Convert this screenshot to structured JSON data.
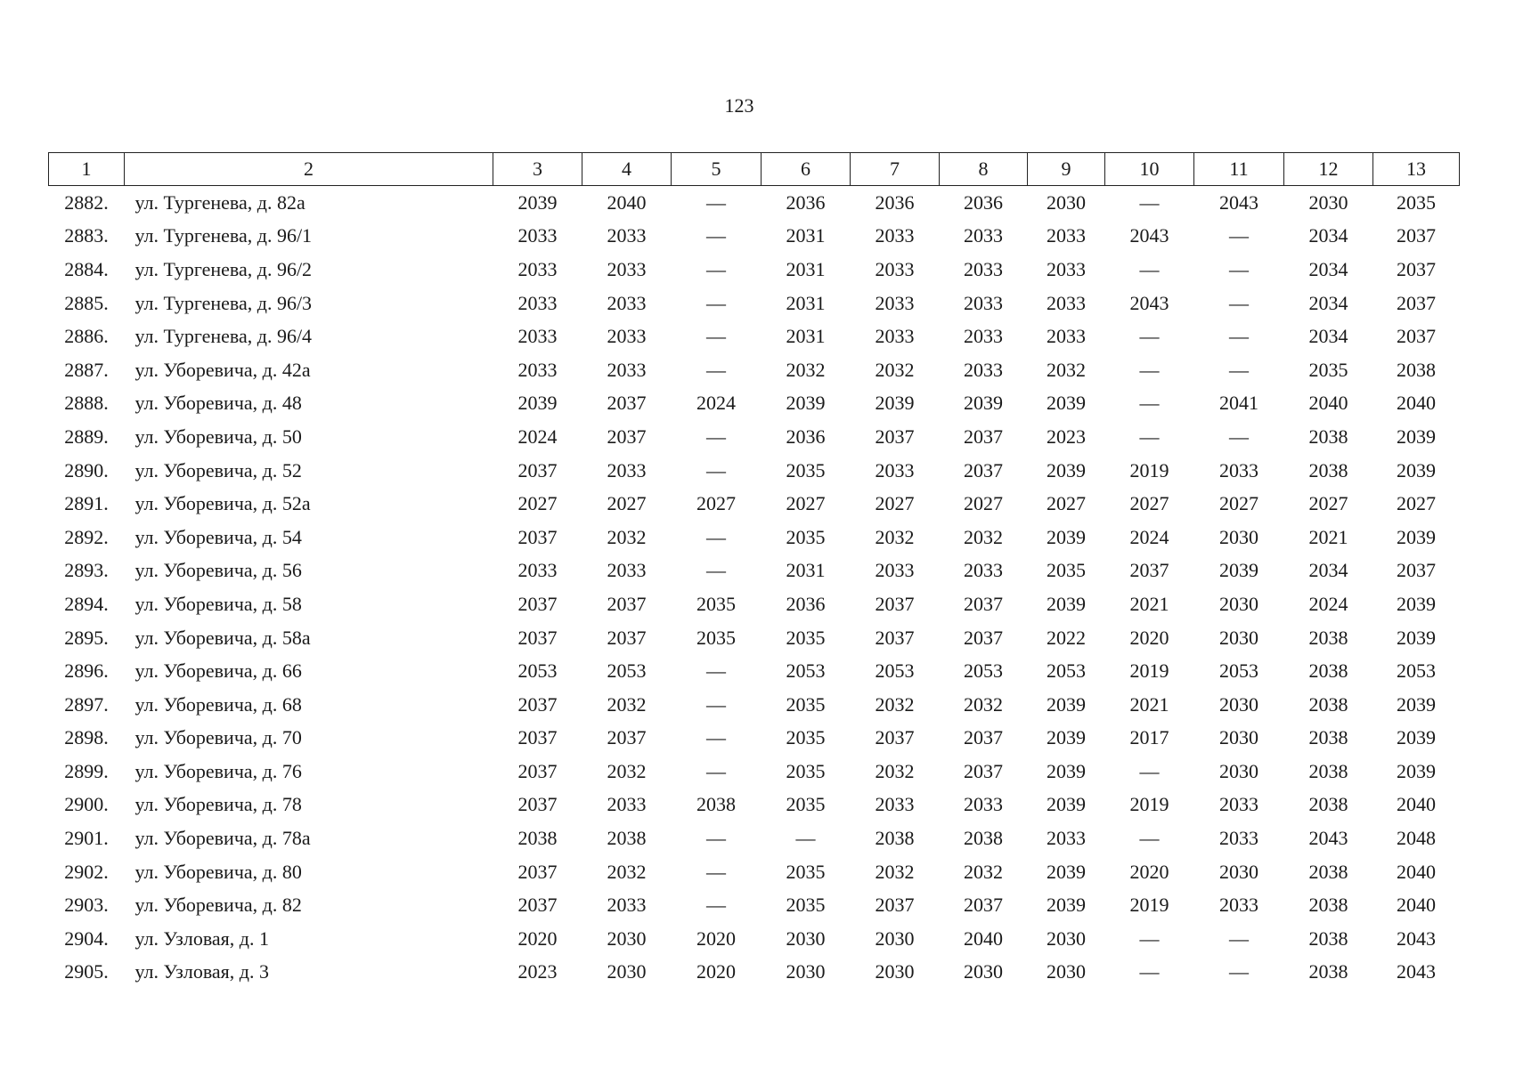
{
  "page_number": "123",
  "table": {
    "header": [
      "1",
      "2",
      "3",
      "4",
      "5",
      "6",
      "7",
      "8",
      "9",
      "10",
      "11",
      "12",
      "13"
    ],
    "rows": [
      [
        "2882.",
        "ул. Тургенева, д. 82а",
        "2039",
        "2040",
        "—",
        "2036",
        "2036",
        "2036",
        "2030",
        "—",
        "2043",
        "2030",
        "2035"
      ],
      [
        "2883.",
        "ул. Тургенева, д. 96/1",
        "2033",
        "2033",
        "—",
        "2031",
        "2033",
        "2033",
        "2033",
        "2043",
        "—",
        "2034",
        "2037"
      ],
      [
        "2884.",
        "ул. Тургенева, д. 96/2",
        "2033",
        "2033",
        "—",
        "2031",
        "2033",
        "2033",
        "2033",
        "—",
        "—",
        "2034",
        "2037"
      ],
      [
        "2885.",
        "ул. Тургенева, д. 96/3",
        "2033",
        "2033",
        "—",
        "2031",
        "2033",
        "2033",
        "2033",
        "2043",
        "—",
        "2034",
        "2037"
      ],
      [
        "2886.",
        "ул. Тургенева, д. 96/4",
        "2033",
        "2033",
        "—",
        "2031",
        "2033",
        "2033",
        "2033",
        "—",
        "—",
        "2034",
        "2037"
      ],
      [
        "2887.",
        "ул. Уборевича, д. 42а",
        "2033",
        "2033",
        "—",
        "2032",
        "2032",
        "2033",
        "2032",
        "—",
        "—",
        "2035",
        "2038"
      ],
      [
        "2888.",
        "ул. Уборевича, д. 48",
        "2039",
        "2037",
        "2024",
        "2039",
        "2039",
        "2039",
        "2039",
        "—",
        "2041",
        "2040",
        "2040"
      ],
      [
        "2889.",
        "ул. Уборевича, д. 50",
        "2024",
        "2037",
        "—",
        "2036",
        "2037",
        "2037",
        "2023",
        "—",
        "—",
        "2038",
        "2039"
      ],
      [
        "2890.",
        "ул. Уборевича, д. 52",
        "2037",
        "2033",
        "—",
        "2035",
        "2033",
        "2037",
        "2039",
        "2019",
        "2033",
        "2038",
        "2039"
      ],
      [
        "2891.",
        "ул. Уборевича, д. 52а",
        "2027",
        "2027",
        "2027",
        "2027",
        "2027",
        "2027",
        "2027",
        "2027",
        "2027",
        "2027",
        "2027"
      ],
      [
        "2892.",
        "ул. Уборевича, д. 54",
        "2037",
        "2032",
        "—",
        "2035",
        "2032",
        "2032",
        "2039",
        "2024",
        "2030",
        "2021",
        "2039"
      ],
      [
        "2893.",
        "ул. Уборевича, д. 56",
        "2033",
        "2033",
        "—",
        "2031",
        "2033",
        "2033",
        "2035",
        "2037",
        "2039",
        "2034",
        "2037"
      ],
      [
        "2894.",
        "ул. Уборевича, д. 58",
        "2037",
        "2037",
        "2035",
        "2036",
        "2037",
        "2037",
        "2039",
        "2021",
        "2030",
        "2024",
        "2039"
      ],
      [
        "2895.",
        "ул. Уборевича, д. 58а",
        "2037",
        "2037",
        "2035",
        "2035",
        "2037",
        "2037",
        "2022",
        "2020",
        "2030",
        "2038",
        "2039"
      ],
      [
        "2896.",
        "ул. Уборевича, д. 66",
        "2053",
        "2053",
        "—",
        "2053",
        "2053",
        "2053",
        "2053",
        "2019",
        "2053",
        "2038",
        "2053"
      ],
      [
        "2897.",
        "ул. Уборевича, д. 68",
        "2037",
        "2032",
        "—",
        "2035",
        "2032",
        "2032",
        "2039",
        "2021",
        "2030",
        "2038",
        "2039"
      ],
      [
        "2898.",
        "ул. Уборевича, д. 70",
        "2037",
        "2037",
        "—",
        "2035",
        "2037",
        "2037",
        "2039",
        "2017",
        "2030",
        "2038",
        "2039"
      ],
      [
        "2899.",
        "ул. Уборевича, д. 76",
        "2037",
        "2032",
        "—",
        "2035",
        "2032",
        "2037",
        "2039",
        "—",
        "2030",
        "2038",
        "2039"
      ],
      [
        "2900.",
        "ул. Уборевича, д. 78",
        "2037",
        "2033",
        "2038",
        "2035",
        "2033",
        "2033",
        "2039",
        "2019",
        "2033",
        "2038",
        "2040"
      ],
      [
        "2901.",
        "ул. Уборевича, д. 78а",
        "2038",
        "2038",
        "—",
        "—",
        "2038",
        "2038",
        "2033",
        "—",
        "2033",
        "2043",
        "2048"
      ],
      [
        "2902.",
        "ул. Уборевича, д. 80",
        "2037",
        "2032",
        "—",
        "2035",
        "2032",
        "2032",
        "2039",
        "2020",
        "2030",
        "2038",
        "2040"
      ],
      [
        "2903.",
        "ул. Уборевича, д. 82",
        "2037",
        "2033",
        "—",
        "2035",
        "2037",
        "2037",
        "2039",
        "2019",
        "2033",
        "2038",
        "2040"
      ],
      [
        "2904.",
        "ул. Узловая, д. 1",
        "2020",
        "2030",
        "2020",
        "2030",
        "2030",
        "2040",
        "2030",
        "—",
        "—",
        "2038",
        "2043"
      ],
      [
        "2905.",
        "ул. Узловая, д. 3",
        "2023",
        "2030",
        "2020",
        "2030",
        "2030",
        "2030",
        "2030",
        "—",
        "—",
        "2038",
        "2043"
      ]
    ]
  }
}
